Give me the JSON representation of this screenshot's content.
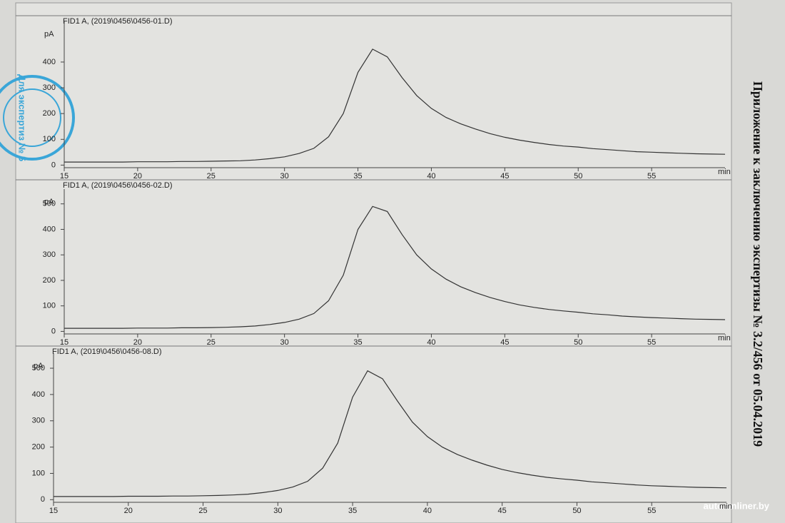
{
  "chart_data": [
    {
      "type": "line",
      "title": "FID1 A,  (2019\\0456\\0456-01.D)",
      "ylabel": "pA",
      "xlabel": "min",
      "xlim": [
        15,
        60
      ],
      "xticks": [
        15,
        20,
        25,
        30,
        35,
        40,
        45,
        50,
        55
      ],
      "ylim": [
        -10,
        530
      ],
      "yticks": [
        0,
        100,
        200,
        300,
        400
      ],
      "x": [
        15,
        16,
        17,
        18,
        19,
        20,
        21,
        22,
        23,
        24,
        25,
        26,
        27,
        28,
        29,
        30,
        31,
        32,
        33,
        34,
        35,
        36,
        37,
        38,
        39,
        40,
        41,
        42,
        43,
        44,
        45,
        46,
        47,
        48,
        49,
        50,
        51,
        52,
        53,
        54,
        55,
        56,
        57,
        58,
        59,
        60
      ],
      "series": [
        {
          "name": "FID1 A",
          "color": "#333333",
          "values": [
            12,
            12,
            12,
            12,
            12,
            13,
            13,
            13,
            14,
            14,
            15,
            16,
            17,
            20,
            25,
            32,
            45,
            65,
            110,
            200,
            360,
            450,
            420,
            340,
            270,
            220,
            185,
            160,
            140,
            122,
            108,
            97,
            88,
            80,
            74,
            70,
            64,
            60,
            56,
            52,
            50,
            48,
            46,
            44,
            43,
            42
          ]
        }
      ]
    },
    {
      "type": "line",
      "title": "FID1 A,  (2019\\0456\\0456-02.D)",
      "ylabel": "pA",
      "xlabel": "min",
      "xlim": [
        15,
        60
      ],
      "xticks": [
        15,
        20,
        25,
        30,
        35,
        40,
        45,
        50,
        55
      ],
      "ylim": [
        -10,
        530
      ],
      "yticks": [
        0,
        100,
        200,
        300,
        400,
        500
      ],
      "x": [
        15,
        16,
        17,
        18,
        19,
        20,
        21,
        22,
        23,
        24,
        25,
        26,
        27,
        28,
        29,
        30,
        31,
        32,
        33,
        34,
        35,
        36,
        37,
        38,
        39,
        40,
        41,
        42,
        43,
        44,
        45,
        46,
        47,
        48,
        49,
        50,
        51,
        52,
        53,
        54,
        55,
        56,
        57,
        58,
        59,
        60
      ],
      "series": [
        {
          "name": "FID1 A",
          "color": "#333333",
          "values": [
            12,
            12,
            12,
            12,
            12,
            13,
            13,
            13,
            14,
            14,
            15,
            16,
            18,
            21,
            27,
            35,
            48,
            70,
            120,
            220,
            400,
            490,
            470,
            380,
            300,
            245,
            205,
            175,
            152,
            133,
            117,
            104,
            94,
            86,
            80,
            75,
            69,
            65,
            60,
            57,
            54,
            52,
            50,
            48,
            47,
            46
          ]
        }
      ]
    },
    {
      "type": "line",
      "title": "FID1 A,  (2019\\0456\\0456-08.D)",
      "ylabel": "pA",
      "xlabel": "min",
      "xlim": [
        15,
        60
      ],
      "xticks": [
        15,
        20,
        25,
        30,
        35,
        40,
        45,
        50,
        55
      ],
      "ylim": [
        -10,
        530
      ],
      "yticks": [
        0,
        100,
        200,
        300,
        400,
        500
      ],
      "x": [
        15,
        16,
        17,
        18,
        19,
        20,
        21,
        22,
        23,
        24,
        25,
        26,
        27,
        28,
        29,
        30,
        31,
        32,
        33,
        34,
        35,
        36,
        37,
        38,
        39,
        40,
        41,
        42,
        43,
        44,
        45,
        46,
        47,
        48,
        49,
        50,
        51,
        52,
        53,
        54,
        55,
        56,
        57,
        58,
        59,
        60
      ],
      "series": [
        {
          "name": "FID1 A",
          "color": "#333333",
          "values": [
            12,
            12,
            12,
            12,
            12,
            13,
            13,
            13,
            14,
            14,
            15,
            16,
            18,
            21,
            27,
            35,
            48,
            70,
            120,
            215,
            390,
            490,
            460,
            375,
            295,
            240,
            200,
            172,
            150,
            131,
            115,
            103,
            93,
            85,
            79,
            74,
            68,
            64,
            60,
            56,
            53,
            51,
            49,
            47,
            46,
            45
          ]
        }
      ]
    }
  ],
  "side_note": "Приложение к заключению экспертизы № 3.2/456 от 05.04.2019",
  "stamp": "Для экспертиз № 5",
  "watermark": "auto.onliner.by"
}
